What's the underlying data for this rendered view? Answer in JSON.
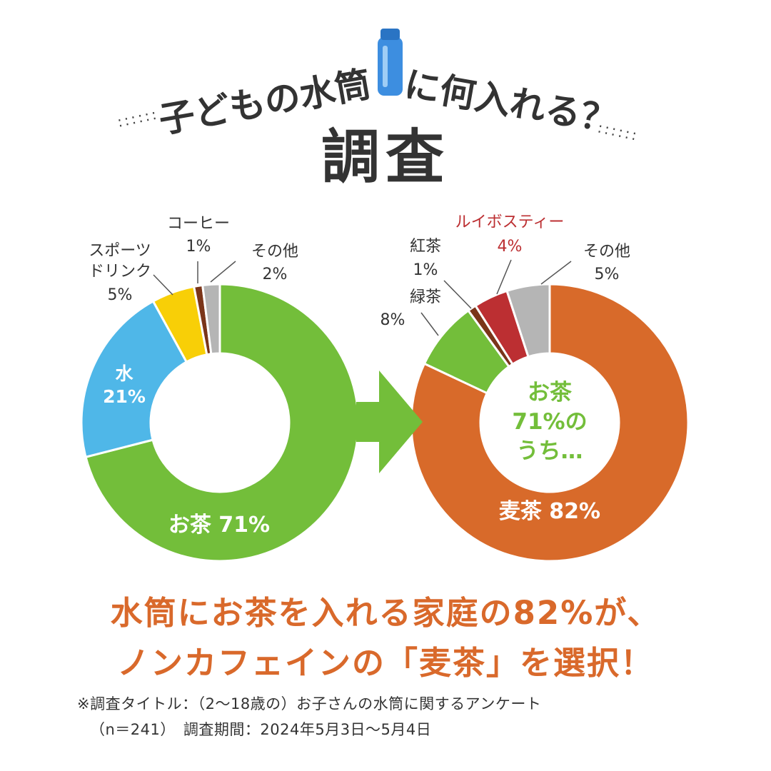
{
  "title": {
    "line1": "子どもの水筒",
    "line1b": "に何入れる？",
    "line2": "調査"
  },
  "colors": {
    "ocha": "#73be3a",
    "water": "#4fb7e8",
    "sports": "#f8cf07",
    "coffee": "#7b3519",
    "gray": "#b5b5b5",
    "mugicha": "#d86a2a",
    "rooibos": "#bc2f32",
    "arrow": "#73be3a",
    "headline": "#d9692b",
    "bottle": "#3d8ee0",
    "label_dark": "#333333",
    "rooibos_text": "#bc2f32"
  },
  "chart_data": [
    {
      "type": "donut",
      "slices": [
        {
          "key": "ocha",
          "name": "お茶",
          "value": 71,
          "label": "71%"
        },
        {
          "key": "water",
          "name": "水",
          "value": 21,
          "label": "21%"
        },
        {
          "key": "sports",
          "name": "スポーツドリンク",
          "value": 5,
          "label": "5%"
        },
        {
          "key": "coffee",
          "name": "コーヒー",
          "value": 1,
          "label": "1%"
        },
        {
          "key": "other",
          "name": "その他",
          "value": 2,
          "label": "2%"
        }
      ],
      "labels": {
        "ocha": "お茶 71%",
        "water_name": "水",
        "water_pct": "21%",
        "sports_line1": "スポーツ",
        "sports_line2": "ドリンク",
        "sports_pct": "5%",
        "coffee_name": "コーヒー",
        "coffee_pct": "1%",
        "other_name": "その他",
        "other_pct": "2%"
      }
    },
    {
      "type": "donut",
      "slices": [
        {
          "key": "mugicha",
          "name": "麦茶",
          "value": 82,
          "label": "82%"
        },
        {
          "key": "ryokucha",
          "name": "緑茶",
          "value": 8,
          "label": "8%"
        },
        {
          "key": "kocha",
          "name": "紅茶",
          "value": 1,
          "label": "1%"
        },
        {
          "key": "rooibos",
          "name": "ルイボスティー",
          "value": 4,
          "label": "4%"
        },
        {
          "key": "other",
          "name": "その他",
          "value": 5,
          "label": "5%"
        }
      ],
      "labels": {
        "mugicha": "麦茶 82%",
        "ryokucha_name": "緑茶",
        "ryokucha_pct": "8%",
        "kocha_name": "紅茶",
        "kocha_pct": "1%",
        "rooibos_name": "ルイボスティー",
        "rooibos_pct": "4%",
        "other_name": "その他",
        "other_pct": "5%"
      },
      "center_text": [
        "お茶",
        "71%の",
        "うち…"
      ]
    }
  ],
  "headline": {
    "line1": "水筒にお茶を入れる家庭の82%が、",
    "line2": "ノンカフェインの「麦茶」を選択！"
  },
  "note": {
    "line1": "※調査タイトル：（2〜18歳の）お子さんの水筒に関するアンケート",
    "line2": "（n＝241）　調査期間：2024年5月3日〜5月4日"
  }
}
